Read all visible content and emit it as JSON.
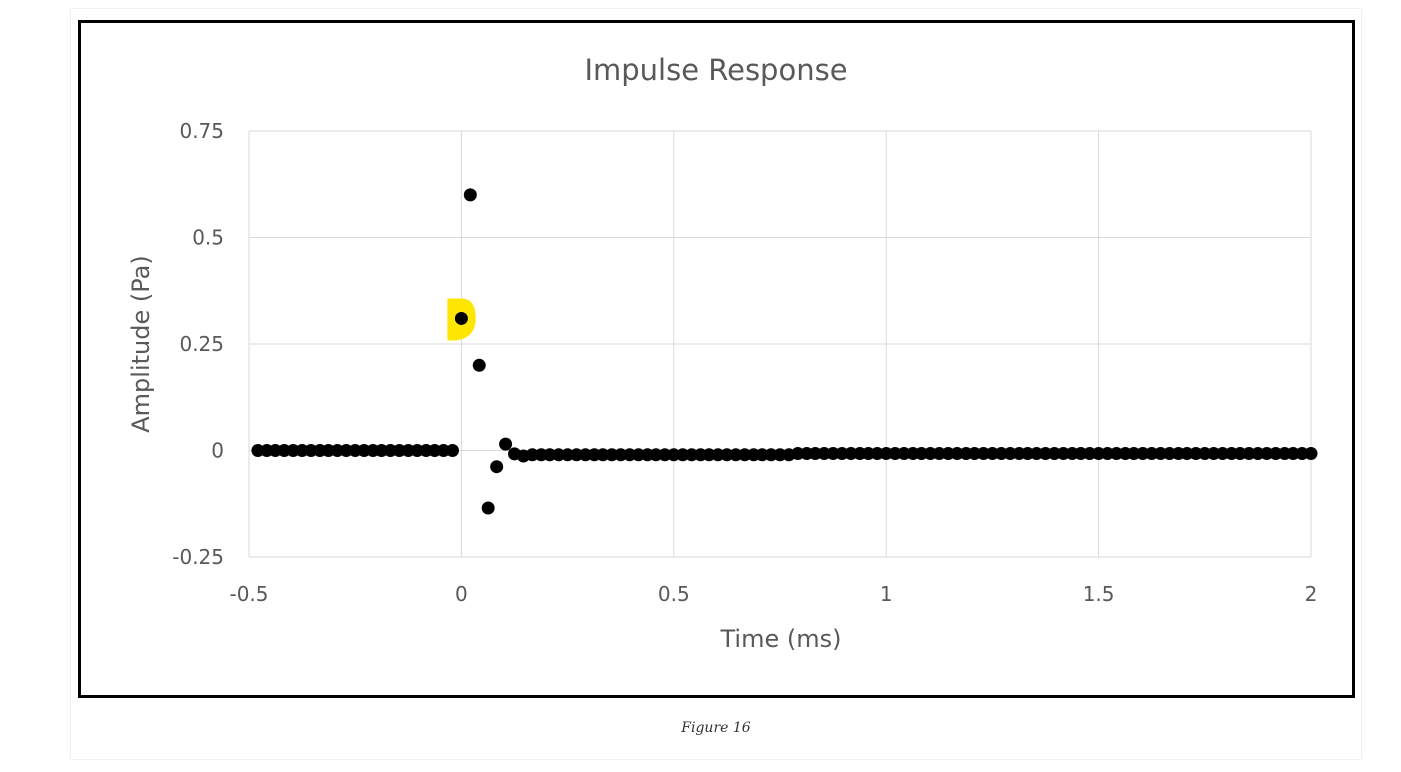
{
  "chart_data": {
    "type": "scatter",
    "title": "Impulse Response",
    "xlabel": "Time (ms)",
    "ylabel": "Amplitude (Pa)",
    "xlim": [
      -0.5,
      2
    ],
    "ylim": [
      -0.25,
      0.75
    ],
    "x_ticks": [
      "-0.5",
      "0",
      "0.5",
      "1",
      "1.5",
      "2"
    ],
    "y_ticks": [
      "0.75",
      "0.5",
      "0.25",
      "0",
      "-0.25"
    ],
    "grid": true,
    "marker_color": "#000000",
    "highlight_color": "#ffe600",
    "highlighted_point": {
      "x": 0.0,
      "y": 0.31
    },
    "series": [
      {
        "points": [
          [
            -0.479,
            0.0
          ],
          [
            -0.458,
            0.0
          ],
          [
            -0.438,
            0.0
          ],
          [
            -0.417,
            0.0
          ],
          [
            -0.396,
            0.0
          ],
          [
            -0.375,
            0.0
          ],
          [
            -0.354,
            0.0
          ],
          [
            -0.333,
            0.0
          ],
          [
            -0.313,
            0.0
          ],
          [
            -0.292,
            0.0
          ],
          [
            -0.271,
            0.0
          ],
          [
            -0.25,
            0.0
          ],
          [
            -0.229,
            0.0
          ],
          [
            -0.208,
            0.0
          ],
          [
            -0.188,
            0.0
          ],
          [
            -0.167,
            0.0
          ],
          [
            -0.146,
            0.0
          ],
          [
            -0.125,
            0.0
          ],
          [
            -0.104,
            0.0
          ],
          [
            -0.083,
            0.0
          ],
          [
            -0.063,
            0.0
          ],
          [
            -0.042,
            0.0
          ],
          [
            -0.021,
            0.0
          ],
          [
            0.0,
            0.31
          ],
          [
            0.021,
            0.6
          ],
          [
            0.042,
            0.2
          ],
          [
            0.063,
            -0.135
          ],
          [
            0.083,
            -0.038
          ],
          [
            0.104,
            0.015
          ],
          [
            0.125,
            -0.008
          ],
          [
            0.146,
            -0.013
          ],
          [
            0.167,
            -0.01
          ],
          [
            0.188,
            -0.01
          ],
          [
            0.208,
            -0.01
          ],
          [
            0.229,
            -0.01
          ],
          [
            0.25,
            -0.01
          ],
          [
            0.271,
            -0.01
          ],
          [
            0.292,
            -0.01
          ],
          [
            0.313,
            -0.01
          ],
          [
            0.333,
            -0.01
          ],
          [
            0.354,
            -0.01
          ],
          [
            0.375,
            -0.01
          ],
          [
            0.396,
            -0.01
          ],
          [
            0.417,
            -0.01
          ],
          [
            0.438,
            -0.01
          ],
          [
            0.458,
            -0.01
          ],
          [
            0.479,
            -0.01
          ],
          [
            0.5,
            -0.01
          ],
          [
            0.521,
            -0.01
          ],
          [
            0.542,
            -0.01
          ],
          [
            0.563,
            -0.01
          ],
          [
            0.583,
            -0.01
          ],
          [
            0.604,
            -0.01
          ],
          [
            0.625,
            -0.01
          ],
          [
            0.646,
            -0.01
          ],
          [
            0.667,
            -0.01
          ],
          [
            0.688,
            -0.01
          ],
          [
            0.708,
            -0.01
          ],
          [
            0.729,
            -0.01
          ],
          [
            0.75,
            -0.01
          ],
          [
            0.771,
            -0.01
          ],
          [
            0.792,
            -0.007
          ],
          [
            0.813,
            -0.007
          ],
          [
            0.833,
            -0.007
          ],
          [
            0.854,
            -0.007
          ],
          [
            0.875,
            -0.007
          ],
          [
            0.896,
            -0.007
          ],
          [
            0.917,
            -0.007
          ],
          [
            0.938,
            -0.007
          ],
          [
            0.958,
            -0.007
          ],
          [
            0.979,
            -0.007
          ],
          [
            1.0,
            -0.007
          ],
          [
            1.021,
            -0.007
          ],
          [
            1.042,
            -0.007
          ],
          [
            1.063,
            -0.007
          ],
          [
            1.083,
            -0.007
          ],
          [
            1.104,
            -0.007
          ],
          [
            1.125,
            -0.007
          ],
          [
            1.146,
            -0.007
          ],
          [
            1.167,
            -0.007
          ],
          [
            1.188,
            -0.007
          ],
          [
            1.208,
            -0.007
          ],
          [
            1.229,
            -0.007
          ],
          [
            1.25,
            -0.007
          ],
          [
            1.271,
            -0.007
          ],
          [
            1.292,
            -0.007
          ],
          [
            1.313,
            -0.007
          ],
          [
            1.333,
            -0.007
          ],
          [
            1.354,
            -0.007
          ],
          [
            1.375,
            -0.007
          ],
          [
            1.396,
            -0.007
          ],
          [
            1.417,
            -0.007
          ],
          [
            1.438,
            -0.007
          ],
          [
            1.458,
            -0.007
          ],
          [
            1.479,
            -0.007
          ],
          [
            1.5,
            -0.007
          ],
          [
            1.521,
            -0.007
          ],
          [
            1.542,
            -0.007
          ],
          [
            1.563,
            -0.007
          ],
          [
            1.583,
            -0.007
          ],
          [
            1.604,
            -0.007
          ],
          [
            1.625,
            -0.007
          ],
          [
            1.646,
            -0.007
          ],
          [
            1.667,
            -0.007
          ],
          [
            1.688,
            -0.007
          ],
          [
            1.708,
            -0.007
          ],
          [
            1.729,
            -0.007
          ],
          [
            1.75,
            -0.007
          ],
          [
            1.771,
            -0.007
          ],
          [
            1.792,
            -0.007
          ],
          [
            1.813,
            -0.007
          ],
          [
            1.833,
            -0.007
          ],
          [
            1.854,
            -0.007
          ],
          [
            1.875,
            -0.007
          ],
          [
            1.896,
            -0.007
          ],
          [
            1.917,
            -0.007
          ],
          [
            1.938,
            -0.007
          ],
          [
            1.958,
            -0.007
          ],
          [
            1.979,
            -0.007
          ],
          [
            2.0,
            -0.007
          ]
        ]
      }
    ]
  },
  "caption": "Figure 16"
}
